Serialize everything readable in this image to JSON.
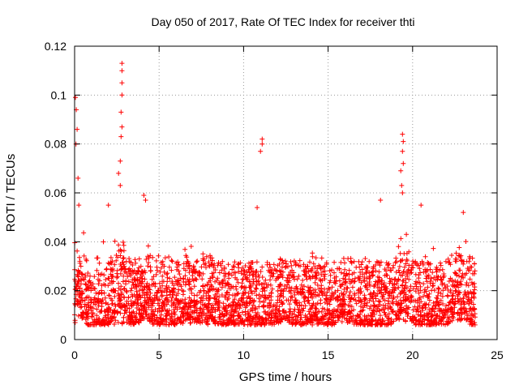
{
  "chart_data": {
    "type": "scatter",
    "title": "Day 050 of 2017, Rate Of TEC Index for receiver thti",
    "xlabel": "GPS time / hours",
    "ylabel": "ROTI / TECUs",
    "xlim": [
      0,
      25
    ],
    "ylim": [
      0,
      0.12
    ],
    "xticks": [
      0,
      5,
      10,
      15,
      20,
      25
    ],
    "xtick_labels": [
      "0",
      "5",
      "10",
      "15",
      "20",
      "25"
    ],
    "yticks": [
      0,
      0.02,
      0.04,
      0.06,
      0.08,
      0.1,
      0.12
    ],
    "ytick_labels": [
      "0",
      "0.02",
      "0.04",
      "0.06",
      "0.08",
      "0.1",
      "0.12"
    ],
    "grid": true,
    "marker": "+",
    "series": [
      {
        "name": "ROTI",
        "color": "#ff0000",
        "description": "Dense band of ROTI values across 0–23.7 h with most points between 0.005 and 0.03 TECU/min",
        "peaks": [
          {
            "x": 0.05,
            "y": 0.099
          },
          {
            "x": 0.1,
            "y": 0.094
          },
          {
            "x": 0.15,
            "y": 0.086
          },
          {
            "x": 0.08,
            "y": 0.08
          },
          {
            "x": 0.2,
            "y": 0.066
          },
          {
            "x": 0.25,
            "y": 0.055
          },
          {
            "x": 2.8,
            "y": 0.113
          },
          {
            "x": 2.8,
            "y": 0.11
          },
          {
            "x": 2.8,
            "y": 0.105
          },
          {
            "x": 2.8,
            "y": 0.1
          },
          {
            "x": 2.75,
            "y": 0.093
          },
          {
            "x": 2.8,
            "y": 0.087
          },
          {
            "x": 2.75,
            "y": 0.083
          },
          {
            "x": 2.7,
            "y": 0.073
          },
          {
            "x": 2.6,
            "y": 0.068
          },
          {
            "x": 2.7,
            "y": 0.063
          },
          {
            "x": 2.0,
            "y": 0.055
          },
          {
            "x": 4.1,
            "y": 0.059
          },
          {
            "x": 4.2,
            "y": 0.057
          },
          {
            "x": 11.1,
            "y": 0.082
          },
          {
            "x": 11.1,
            "y": 0.08
          },
          {
            "x": 11.0,
            "y": 0.077
          },
          {
            "x": 10.8,
            "y": 0.054
          },
          {
            "x": 19.4,
            "y": 0.084
          },
          {
            "x": 19.45,
            "y": 0.081
          },
          {
            "x": 19.4,
            "y": 0.077
          },
          {
            "x": 19.45,
            "y": 0.072
          },
          {
            "x": 19.3,
            "y": 0.069
          },
          {
            "x": 19.35,
            "y": 0.063
          },
          {
            "x": 19.4,
            "y": 0.06
          },
          {
            "x": 18.1,
            "y": 0.057
          },
          {
            "x": 20.5,
            "y": 0.055
          },
          {
            "x": 23.0,
            "y": 0.052
          }
        ]
      }
    ]
  }
}
